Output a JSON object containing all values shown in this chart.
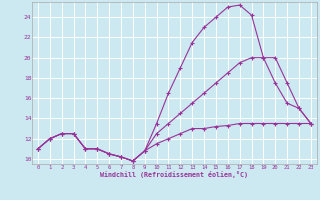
{
  "xlabel": "Windchill (Refroidissement éolien,°C)",
  "bg_color": "#cce8f0",
  "grid_color": "#ffffff",
  "line_color": "#993399",
  "xlim": [
    -0.5,
    23.5
  ],
  "ylim": [
    9.5,
    25.5
  ],
  "xticks": [
    0,
    1,
    2,
    3,
    4,
    5,
    6,
    7,
    8,
    9,
    10,
    11,
    12,
    13,
    14,
    15,
    16,
    17,
    18,
    19,
    20,
    21,
    22,
    23
  ],
  "yticks": [
    10,
    12,
    14,
    16,
    18,
    20,
    22,
    24
  ],
  "line1_x": [
    0,
    1,
    2,
    3,
    4,
    5,
    6,
    7,
    8,
    9,
    10,
    11,
    12,
    13,
    14,
    15,
    16,
    17,
    18,
    19,
    20,
    21,
    22,
    23
  ],
  "line1_y": [
    11.0,
    12.0,
    12.5,
    12.5,
    11.0,
    11.0,
    10.5,
    10.2,
    9.8,
    10.8,
    13.5,
    16.5,
    19.0,
    21.5,
    23.0,
    24.0,
    25.0,
    25.2,
    24.2,
    20.0,
    17.5,
    15.5,
    15.0,
    13.5
  ],
  "line2_x": [
    0,
    1,
    2,
    3,
    4,
    5,
    6,
    7,
    8,
    9,
    10,
    11,
    12,
    13,
    14,
    15,
    16,
    17,
    18,
    19,
    20,
    21,
    22,
    23
  ],
  "line2_y": [
    11.0,
    12.0,
    12.5,
    12.5,
    11.0,
    11.0,
    10.5,
    10.2,
    9.8,
    10.8,
    12.5,
    13.5,
    14.5,
    15.5,
    16.5,
    17.5,
    18.5,
    19.5,
    20.0,
    20.0,
    20.0,
    17.5,
    15.0,
    13.5
  ],
  "line3_x": [
    0,
    1,
    2,
    3,
    4,
    5,
    6,
    7,
    8,
    9,
    10,
    11,
    12,
    13,
    14,
    15,
    16,
    17,
    18,
    19,
    20,
    21,
    22,
    23
  ],
  "line3_y": [
    11.0,
    12.0,
    12.5,
    12.5,
    11.0,
    11.0,
    10.5,
    10.2,
    9.8,
    10.8,
    11.5,
    12.0,
    12.5,
    13.0,
    13.0,
    13.2,
    13.3,
    13.5,
    13.5,
    13.5,
    13.5,
    13.5,
    13.5,
    13.5
  ]
}
